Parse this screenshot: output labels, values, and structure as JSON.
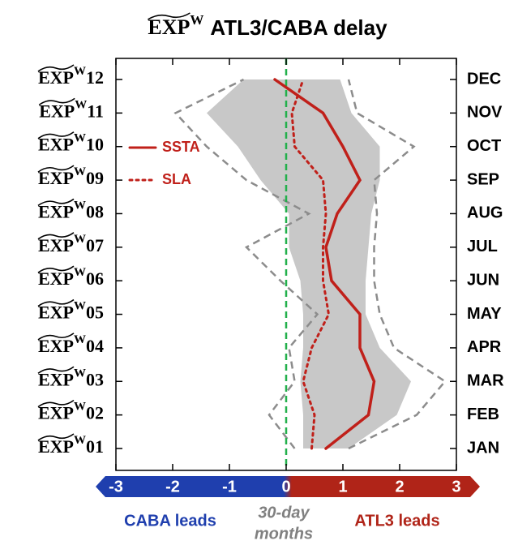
{
  "chart_data": {
    "type": "line",
    "title_prefix": "EXP",
    "title_superscript": "W",
    "title": "ATL3/CABA delay",
    "row_prefix": "EXP",
    "row_superscript": "W",
    "row_numbers": [
      "01",
      "02",
      "03",
      "04",
      "05",
      "06",
      "07",
      "08",
      "09",
      "10",
      "11",
      "12"
    ],
    "categories": [
      "JAN",
      "FEB",
      "MAR",
      "APR",
      "MAY",
      "JUN",
      "JUL",
      "AUG",
      "SEP",
      "OCT",
      "NOV",
      "DEC"
    ],
    "series": [
      {
        "name": "SSTA",
        "color": "#c0201a",
        "style": "solid",
        "values": [
          0.7,
          1.45,
          1.55,
          1.3,
          1.3,
          0.8,
          0.7,
          0.9,
          1.3,
          1.0,
          0.65,
          -0.2
        ]
      },
      {
        "name": "SLA",
        "color": "#c0201a",
        "style": "dotted",
        "values": [
          0.45,
          0.5,
          0.3,
          0.45,
          0.75,
          0.65,
          0.65,
          0.7,
          0.65,
          0.15,
          0.1,
          0.3
        ]
      }
    ],
    "band": {
      "color": "#c8c8c8",
      "low": [
        0.3,
        0.3,
        0.25,
        0.3,
        0.3,
        0.25,
        0.05,
        0.05,
        -0.45,
        -0.85,
        -1.4,
        -0.75
      ],
      "high": [
        1.1,
        1.95,
        2.2,
        1.65,
        1.4,
        1.4,
        1.45,
        1.5,
        1.65,
        1.65,
        1.15,
        0.95
      ]
    },
    "bounds": {
      "color": "#8c8c8c",
      "low": [
        0.15,
        -0.3,
        0.15,
        0.05,
        0.55,
        -0.1,
        -0.7,
        0.4,
        -0.7,
        -1.4,
        -1.95,
        -0.75
      ],
      "high": [
        1.1,
        2.3,
        2.8,
        1.9,
        1.65,
        1.55,
        1.55,
        1.6,
        1.55,
        2.25,
        1.25,
        1.1
      ]
    },
    "reference_line": {
      "value": 0,
      "color": "#22b04b"
    },
    "xlim": [
      -3,
      3
    ],
    "xticks": [
      -3,
      -2,
      -1,
      0,
      1,
      2,
      3
    ],
    "axis_colors": [
      "#1f3fae",
      "#b02418"
    ],
    "legend": "upper left",
    "left_note": "CABA leads",
    "center_note": [
      "30-day",
      "months"
    ],
    "right_note": "ATL3 leads"
  }
}
